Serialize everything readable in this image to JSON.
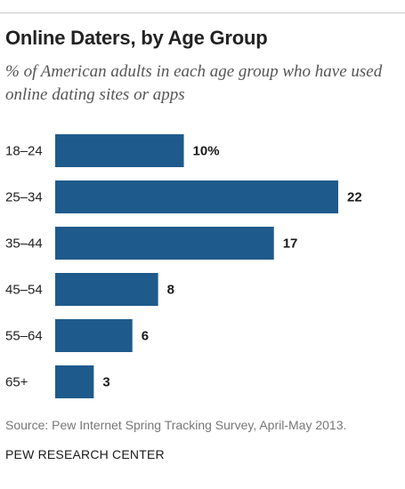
{
  "chart_data": {
    "type": "bar",
    "orientation": "horizontal",
    "title": "Online Daters, by Age Group",
    "subtitle": "% of American adults in each age group who have used online dating sites or apps",
    "categories": [
      "18–24",
      "25–34",
      "35–44",
      "45–54",
      "55–64",
      "65+"
    ],
    "values": [
      10,
      22,
      17,
      8,
      6,
      3
    ],
    "value_labels": [
      "10%",
      "22",
      "17",
      "8",
      "6",
      "3"
    ],
    "xlim": [
      0,
      22
    ],
    "grid": false,
    "bar_color": "#1f5a8c",
    "source": "Source: Pew Internet Spring Tracking Survey, April-May 2013.",
    "brand": "PEW RESEARCH CENTER"
  }
}
